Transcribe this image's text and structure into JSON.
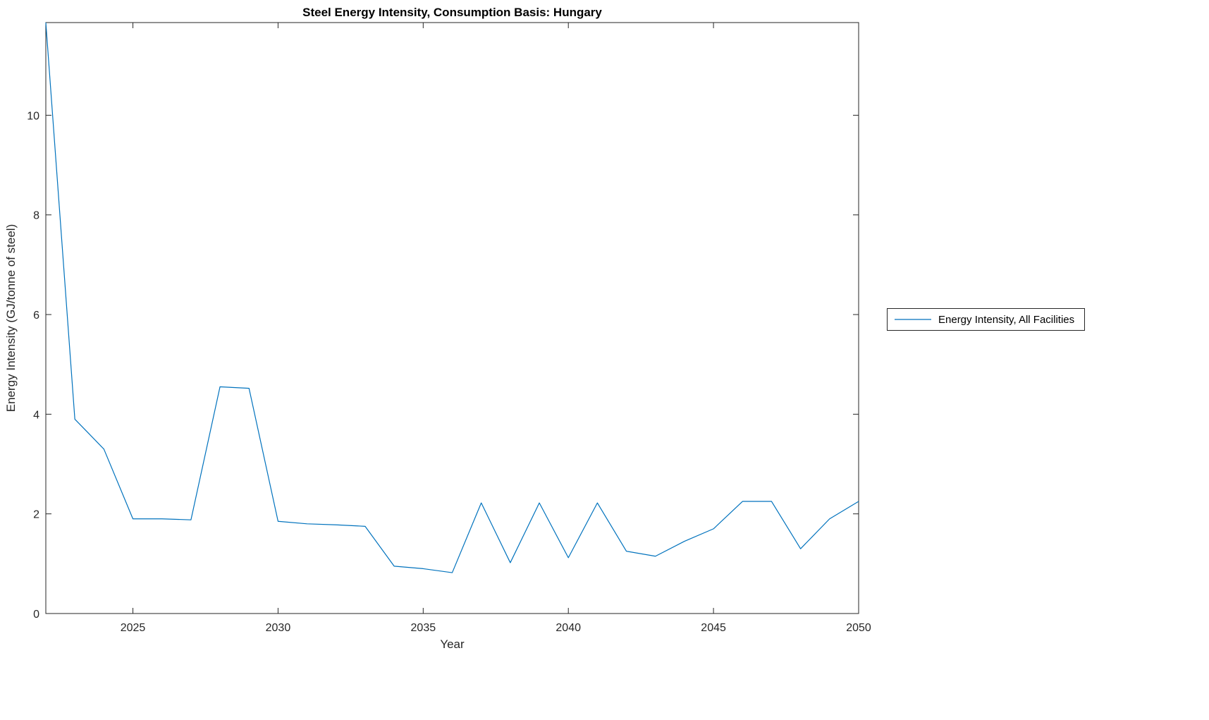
{
  "chart_data": {
    "type": "line",
    "title": "Steel Energy Intensity, Consumption Basis: Hungary",
    "xlabel": "Year",
    "ylabel": "Energy Intensity (GJ/tonne of steel)",
    "xlim": [
      2022,
      2050
    ],
    "ylim": [
      0,
      11.86
    ],
    "xticks": [
      2025,
      2030,
      2035,
      2040,
      2045,
      2050
    ],
    "yticks": [
      0,
      2,
      4,
      6,
      8,
      10
    ],
    "grid": false,
    "legend_position": "right-outside",
    "line_color": "#0072BD",
    "axis_color": "#262626",
    "x": [
      2022,
      2023,
      2024,
      2025,
      2026,
      2027,
      2028,
      2029,
      2030,
      2031,
      2032,
      2033,
      2034,
      2035,
      2036,
      2037,
      2038,
      2039,
      2040,
      2041,
      2042,
      2043,
      2044,
      2045,
      2046,
      2047,
      2048,
      2049,
      2050
    ],
    "series": [
      {
        "name": "Energy Intensity, All Facilities",
        "values": [
          11.86,
          3.9,
          3.3,
          1.9,
          1.9,
          1.88,
          4.55,
          4.52,
          1.85,
          1.8,
          1.78,
          1.75,
          0.95,
          0.9,
          0.82,
          2.22,
          1.02,
          2.22,
          1.12,
          2.22,
          1.25,
          1.15,
          1.45,
          1.7,
          2.25,
          2.25,
          1.3,
          1.9,
          2.25
        ]
      }
    ]
  }
}
